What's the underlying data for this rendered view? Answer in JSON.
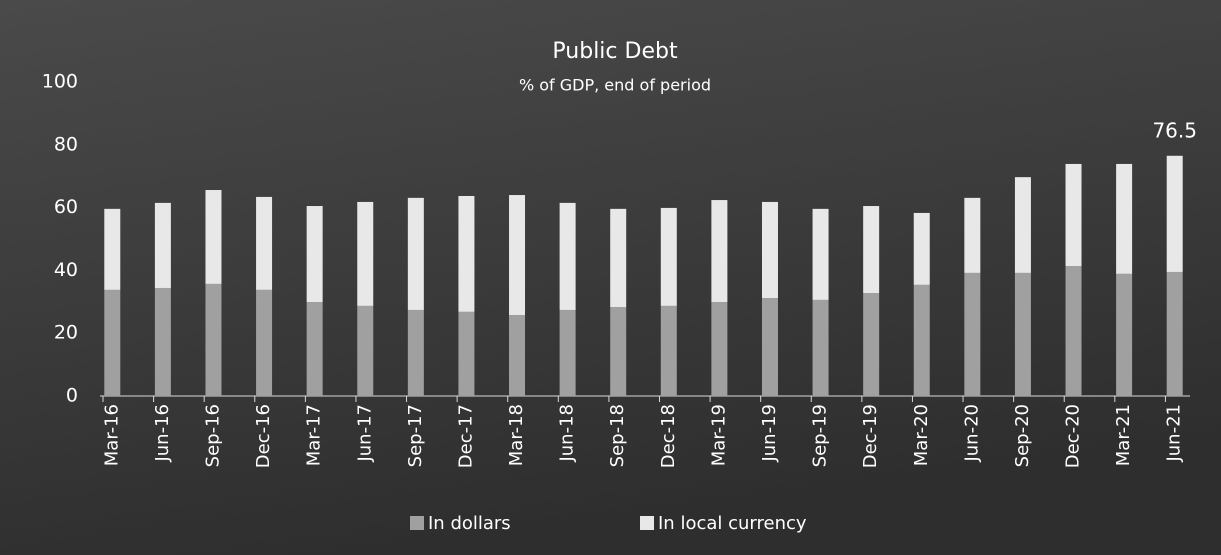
{
  "chart_data": {
    "type": "stacked_bar",
    "title": "Public Debt",
    "subtitle": "% of GDP, end of period",
    "categories": [
      "Mar-16",
      "Jun-16",
      "Sep-16",
      "Dec-16",
      "Mar-17",
      "Jun-17",
      "Sep-17",
      "Dec-17",
      "Mar-18",
      "Jun-18",
      "Sep-18",
      "Dec-18",
      "Mar-19",
      "Jun-19",
      "Sep-19",
      "Dec-19",
      "Mar-20",
      "Jun-20",
      "Sep-20",
      "Dec-20",
      "Mar-21",
      "Jun-21"
    ],
    "series": [
      {
        "name": "In dollars",
        "color": "#a0a0a0",
        "values": [
          33.8,
          34.4,
          35.7,
          33.8,
          29.9,
          28.7,
          27.4,
          26.8,
          25.8,
          27.4,
          28.3,
          28.7,
          29.9,
          31.2,
          30.6,
          32.8,
          35.4,
          39.2,
          39.2,
          41.4,
          38.9,
          39.5
        ]
      },
      {
        "name": "In local currency",
        "color": "#e8e8e8",
        "values": [
          25.8,
          27.1,
          29.9,
          29.6,
          30.6,
          33.1,
          35.7,
          36.9,
          38.2,
          34.1,
          31.3,
          31.2,
          32.5,
          30.6,
          29.0,
          27.7,
          22.9,
          23.9,
          30.5,
          32.5,
          35.0,
          37.0
        ]
      }
    ],
    "total_label": 76.5,
    "ylim": [
      0,
      100
    ],
    "yticks": [
      0,
      20,
      40,
      60,
      80,
      100
    ],
    "grid": false,
    "legend": "bottom"
  }
}
